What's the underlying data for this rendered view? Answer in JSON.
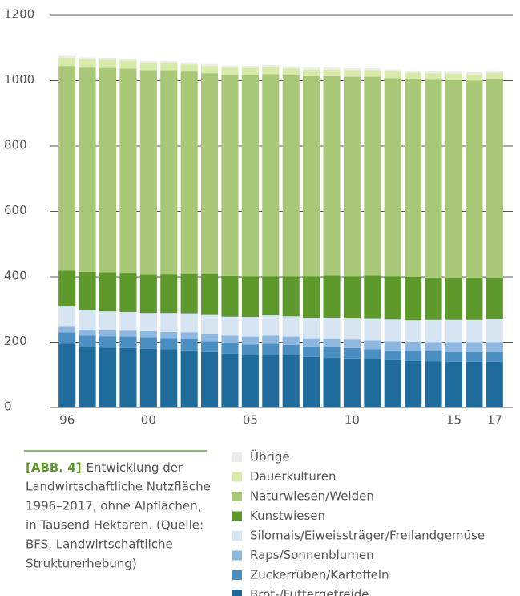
{
  "chart_data": {
    "type": "stacked_bar",
    "categories": [
      "96",
      null,
      null,
      null,
      "00",
      null,
      null,
      null,
      null,
      "05",
      null,
      null,
      null,
      null,
      "10",
      null,
      null,
      null,
      null,
      "15",
      null,
      "17"
    ],
    "series": [
      {
        "name": "Brot-/Futtergetreide",
        "color": "#1f6c9c",
        "values": [
          195,
          185,
          183,
          182,
          180,
          178,
          175,
          170,
          165,
          160,
          163,
          160,
          155,
          152,
          150,
          148,
          145,
          143,
          142,
          140,
          140,
          140
        ]
      },
      {
        "name": "Zuckerrüben/Kartoffeln",
        "color": "#4b8fc2",
        "values": [
          35,
          35,
          35,
          35,
          35,
          35,
          35,
          33,
          33,
          33,
          32,
          32,
          32,
          32,
          32,
          30,
          30,
          30,
          30,
          30,
          30,
          30
        ]
      },
      {
        "name": "Raps/Sonnenblumen",
        "color": "#8db7de",
        "values": [
          17,
          18,
          18,
          18,
          18,
          18,
          20,
          22,
          22,
          24,
          25,
          25,
          25,
          26,
          26,
          27,
          28,
          28,
          28,
          30,
          30,
          30
        ]
      },
      {
        "name": "Silomais/Eiweissträger/Freilandgemüse",
        "color": "#d7e5f3",
        "values": [
          62,
          60,
          58,
          57,
          56,
          58,
          58,
          58,
          58,
          60,
          62,
          62,
          62,
          64,
          64,
          66,
          66,
          66,
          68,
          68,
          68,
          70
        ]
      },
      {
        "name": "Kunstwiesen",
        "color": "#5d9a2b",
        "values": [
          110,
          117,
          120,
          120,
          117,
          118,
          120,
          125,
          125,
          125,
          120,
          122,
          128,
          130,
          130,
          133,
          133,
          133,
          130,
          127,
          130,
          125
        ]
      },
      {
        "name": "Naturwiesen/Weiden",
        "color": "#a8c878",
        "values": [
          626,
          625,
          625,
          625,
          626,
          625,
          620,
          615,
          615,
          615,
          618,
          615,
          612,
          610,
          610,
          608,
          606,
          605,
          605,
          606,
          602,
          610
        ]
      },
      {
        "name": "Dauerkulturen",
        "color": "#d8eaa9",
        "values": [
          25,
          25,
          25,
          25,
          22,
          22,
          22,
          22,
          22,
          22,
          22,
          22,
          20,
          20,
          20,
          20,
          20,
          20,
          20,
          20,
          20,
          20
        ]
      },
      {
        "name": "Übrige",
        "color": "#ececec",
        "values": [
          6,
          6,
          6,
          6,
          6,
          6,
          6,
          6,
          6,
          6,
          6,
          6,
          6,
          6,
          6,
          6,
          6,
          6,
          6,
          6,
          6,
          6
        ]
      }
    ],
    "ylim": [
      0,
      1200
    ],
    "yticks": [
      0,
      200,
      400,
      600,
      800,
      1000,
      1200
    ],
    "grid": true,
    "caption_label": "[ABB. 4]",
    "caption_lines": [
      "Entwicklung der",
      "Landwirtschaftliche Nutzfläche",
      "1996–2017, ohne Alpflächen,",
      "in Tausend Hektaren. (Quelle:",
      "BFS, Landwirtschaftliche",
      "Strukturerhebung)"
    ]
  }
}
